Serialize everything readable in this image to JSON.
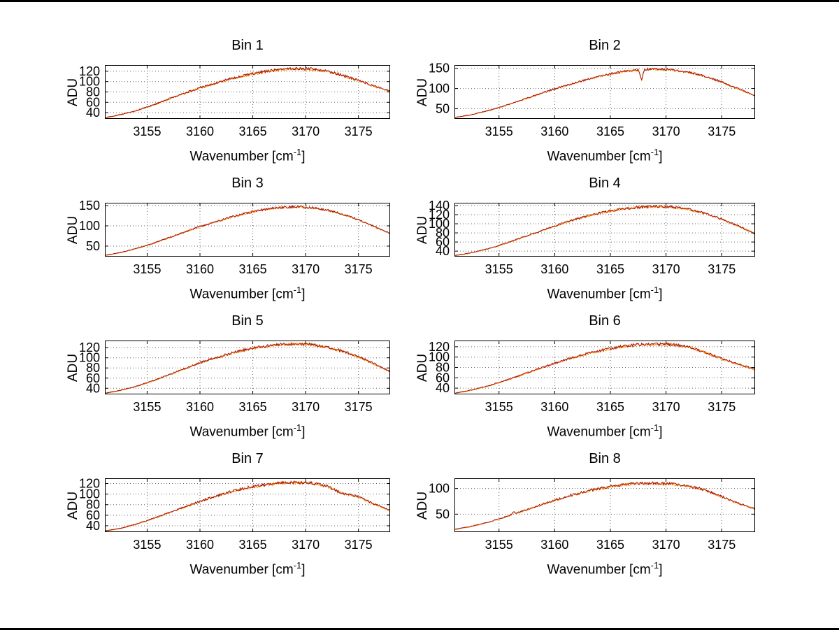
{
  "figure_title": "",
  "style": {
    "background": "#ffffff",
    "axis_color": "#000000",
    "grid_color": "#666666",
    "line_colors": [
      "#ff9900",
      "#a31212"
    ]
  },
  "chart_data": [
    {
      "type": "line",
      "title": "Bin 1",
      "xlabel": "Wavenumber [cm^{-1}]",
      "ylabel": "ADU",
      "xlim": [
        3151,
        3178
      ],
      "xticks": [
        3155,
        3160,
        3165,
        3170,
        3175
      ],
      "ylim": [
        28,
        132
      ],
      "yticks": [
        40,
        60,
        80,
        100,
        120
      ],
      "x": [
        3151,
        3152.5,
        3154,
        3155.5,
        3157,
        3158.5,
        3160,
        3161.5,
        3163,
        3164.5,
        3166,
        3167.5,
        3169,
        3170.5,
        3172,
        3173.5,
        3175,
        3176.5,
        3178
      ],
      "y": [
        30,
        36,
        44,
        54,
        66,
        77,
        88,
        97,
        106,
        113,
        119,
        123,
        125,
        124,
        120,
        112,
        102,
        91,
        82
      ],
      "grid": true,
      "legend": null
    },
    {
      "type": "line",
      "title": "Bin 2",
      "xlabel": "Wavenumber [cm^{-1}]",
      "ylabel": "ADU",
      "xlim": [
        3151,
        3178
      ],
      "xticks": [
        3155,
        3160,
        3165,
        3170,
        3175
      ],
      "ylim": [
        25,
        158
      ],
      "yticks": [
        50,
        100,
        150
      ],
      "x": [
        3151,
        3152.5,
        3154,
        3155.5,
        3157,
        3158.5,
        3160,
        3161.5,
        3163,
        3164.5,
        3166,
        3167.5,
        3169,
        3170.5,
        3172,
        3173.5,
        3175,
        3176.5,
        3178
      ],
      "y": [
        28,
        35,
        45,
        57,
        71,
        85,
        99,
        111,
        123,
        133,
        141,
        146,
        148,
        146,
        140,
        130,
        116,
        99,
        82
      ],
      "spikes": [
        {
          "x": 3167.8,
          "drop": 26,
          "width": 0.25
        }
      ],
      "grid": true,
      "legend": null
    },
    {
      "type": "line",
      "title": "Bin 3",
      "xlabel": "Wavenumber [cm^{-1}]",
      "ylabel": "ADU",
      "xlim": [
        3151,
        3178
      ],
      "xticks": [
        3155,
        3160,
        3165,
        3170,
        3175
      ],
      "ylim": [
        24,
        157
      ],
      "yticks": [
        50,
        100,
        150
      ],
      "x": [
        3151,
        3152.5,
        3154,
        3155.5,
        3157,
        3158.5,
        3160,
        3161.5,
        3163,
        3164.5,
        3166,
        3167.5,
        3169,
        3170.5,
        3172,
        3173.5,
        3175,
        3176.5,
        3178
      ],
      "y": [
        27,
        34,
        44,
        56,
        70,
        84,
        98,
        110,
        122,
        132,
        140,
        145,
        147,
        145,
        139,
        129,
        115,
        98,
        81
      ],
      "grid": true,
      "legend": null
    },
    {
      "type": "line",
      "title": "Bin 4",
      "xlabel": "Wavenumber [cm^{-1}]",
      "ylabel": "ADU",
      "xlim": [
        3151,
        3178
      ],
      "xticks": [
        3155,
        3160,
        3165,
        3170,
        3175
      ],
      "ylim": [
        28,
        146
      ],
      "yticks": [
        40,
        60,
        80,
        100,
        120,
        140
      ],
      "x": [
        3151,
        3152.5,
        3154,
        3155.5,
        3157,
        3158.5,
        3160,
        3161.5,
        3163,
        3164.5,
        3166,
        3167.5,
        3169,
        3170.5,
        3172,
        3173.5,
        3175,
        3176.5,
        3178
      ],
      "y": [
        30,
        36,
        45,
        56,
        69,
        82,
        95,
        107,
        117,
        126,
        132,
        136,
        138,
        137,
        132,
        123,
        110,
        95,
        78
      ],
      "grid": true,
      "legend": null
    },
    {
      "type": "line",
      "title": "Bin 5",
      "xlabel": "Wavenumber [cm^{-1}]",
      "ylabel": "ADU",
      "xlim": [
        3151,
        3178
      ],
      "xticks": [
        3155,
        3160,
        3165,
        3170,
        3175
      ],
      "ylim": [
        28,
        134
      ],
      "yticks": [
        40,
        60,
        80,
        100,
        120
      ],
      "x": [
        3151,
        3152.5,
        3154,
        3155.5,
        3157,
        3158.5,
        3160,
        3161.5,
        3163,
        3164.5,
        3166,
        3167.5,
        3169,
        3170.5,
        3172,
        3173.5,
        3175,
        3176.5,
        3178
      ],
      "y": [
        30,
        36,
        44,
        54,
        66,
        78,
        90,
        100,
        109,
        117,
        122,
        126,
        127,
        126,
        121,
        113,
        102,
        88,
        73
      ],
      "grid": true,
      "legend": null
    },
    {
      "type": "line",
      "title": "Bin 6",
      "xlabel": "Wavenumber [cm^{-1}]",
      "ylabel": "ADU",
      "xlim": [
        3151,
        3178
      ],
      "xticks": [
        3155,
        3160,
        3165,
        3170,
        3175
      ],
      "ylim": [
        28,
        132
      ],
      "yticks": [
        40,
        60,
        80,
        100,
        120
      ],
      "x": [
        3151,
        3152.5,
        3154,
        3155.5,
        3157,
        3158.5,
        3160,
        3161.5,
        3163,
        3164.5,
        3166,
        3167.5,
        3169,
        3170.5,
        3172,
        3173.5,
        3175,
        3176.5,
        3178
      ],
      "y": [
        30,
        36,
        44,
        54,
        65,
        77,
        88,
        98,
        107,
        114,
        120,
        124,
        125,
        124,
        120,
        109,
        97,
        86,
        76
      ],
      "grid": true,
      "legend": null
    },
    {
      "type": "line",
      "title": "Bin 7",
      "xlabel": "Wavenumber [cm^{-1}]",
      "ylabel": "ADU",
      "xlim": [
        3151,
        3178
      ],
      "xticks": [
        3155,
        3160,
        3165,
        3170,
        3175
      ],
      "ylim": [
        28,
        130
      ],
      "yticks": [
        40,
        60,
        80,
        100,
        120
      ],
      "x": [
        3151,
        3152.5,
        3154,
        3155.5,
        3157,
        3158.5,
        3160,
        3161.5,
        3163,
        3164.5,
        3166,
        3167.5,
        3169,
        3170.5,
        3172,
        3173.5,
        3175,
        3176.5,
        3178
      ],
      "y": [
        30,
        35,
        43,
        53,
        64,
        75,
        86,
        96,
        105,
        112,
        117,
        121,
        122,
        121,
        115,
        101,
        95,
        81,
        69
      ],
      "grid": true,
      "legend": null
    },
    {
      "type": "line",
      "title": "Bin 8",
      "xlabel": "Wavenumber [cm^{-1}]",
      "ylabel": "ADU",
      "xlim": [
        3151,
        3178
      ],
      "xticks": [
        3155,
        3160,
        3165,
        3170,
        3175
      ],
      "ylim": [
        15,
        120
      ],
      "yticks": [
        50,
        100
      ],
      "x": [
        3151,
        3152.5,
        3154,
        3155.5,
        3157,
        3158.5,
        3160,
        3161.5,
        3163,
        3164.5,
        3166,
        3167.5,
        3169,
        3170.5,
        3172,
        3173.5,
        3175,
        3176.5,
        3178
      ],
      "y": [
        20,
        26,
        34,
        44,
        55,
        66,
        77,
        87,
        95,
        102,
        107,
        110,
        110,
        109,
        105,
        97,
        84,
        71,
        60
      ],
      "spikes": [
        {
          "x": 3156.3,
          "drop": -6,
          "width": 0.2
        }
      ],
      "grid": true,
      "legend": null
    }
  ]
}
